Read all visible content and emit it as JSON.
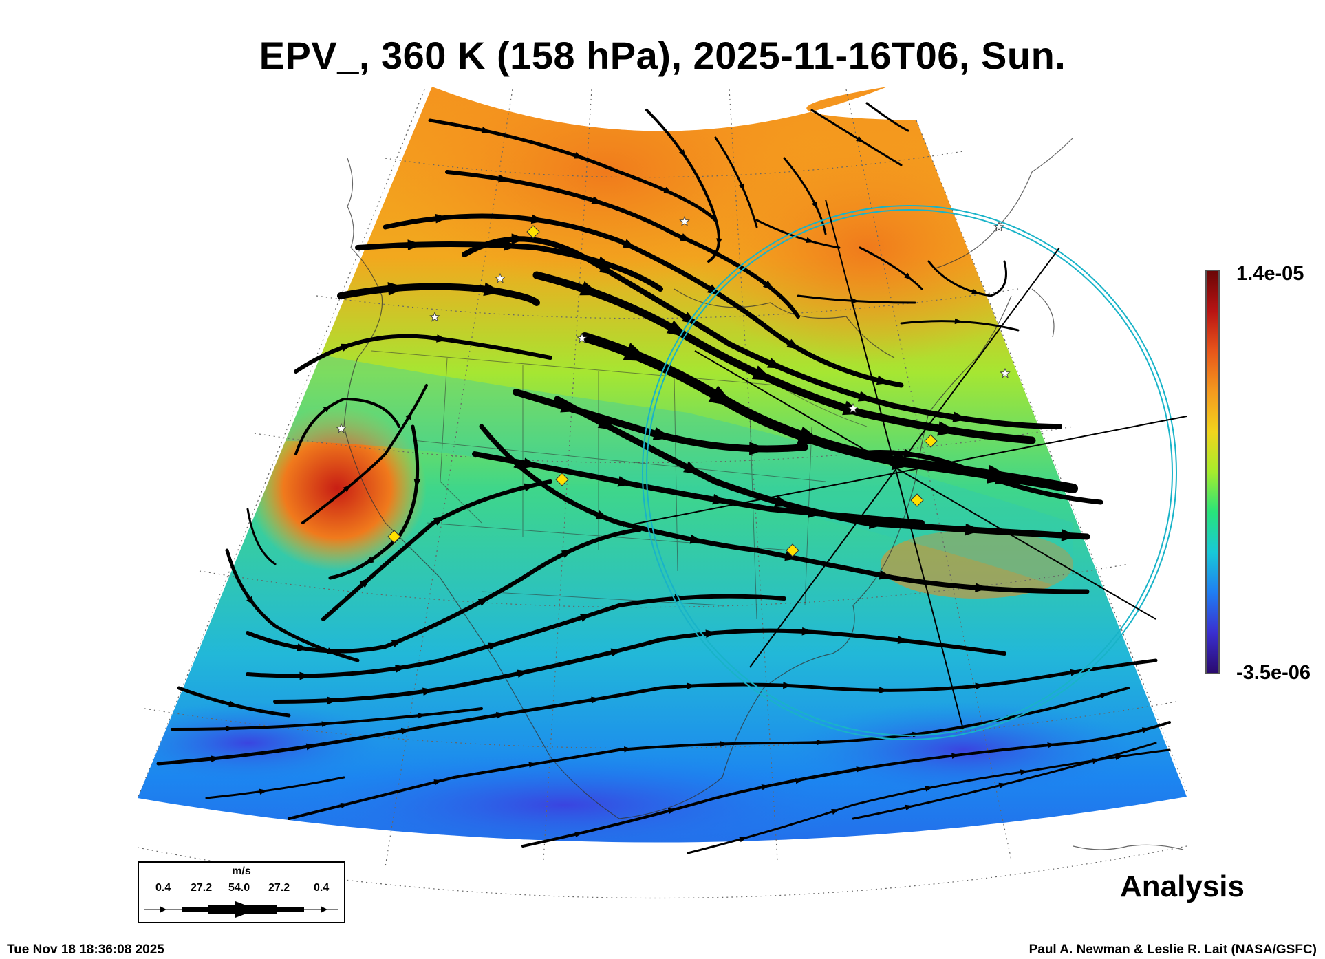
{
  "title": "EPV_, 360 K (158 hPa), 2025-11-16T06, Sun.",
  "colorbar": {
    "max_label": "1.4e-05",
    "min_label": "-3.5e-06",
    "colors": [
      "#2a0a6e",
      "#3a2fd0",
      "#1f7ef2",
      "#18c9d8",
      "#28e37a",
      "#a6ec2c",
      "#f2d41c",
      "#f59a1e",
      "#e8561a",
      "#b81414",
      "#6a0606"
    ]
  },
  "legend": {
    "unit": "m/s",
    "values": [
      "0.4",
      "27.2",
      "54.0",
      "27.2",
      "0.4"
    ]
  },
  "label_analysis": "Analysis",
  "footer": {
    "timestamp": "Tue Nov 18 18:36:08 2025",
    "credit": "Paul A. Newman & Leslie R. Lait (NASA/GSFC)"
  },
  "colors": {
    "circle": "#19b3c8",
    "marker": "#ffe000",
    "streamline": "#000000",
    "high_pv": "#f5921e",
    "low_pv": "#1c86f0"
  },
  "icons": {
    "diamond": "yellow-diamond-marker",
    "star": "white-star-marker"
  }
}
